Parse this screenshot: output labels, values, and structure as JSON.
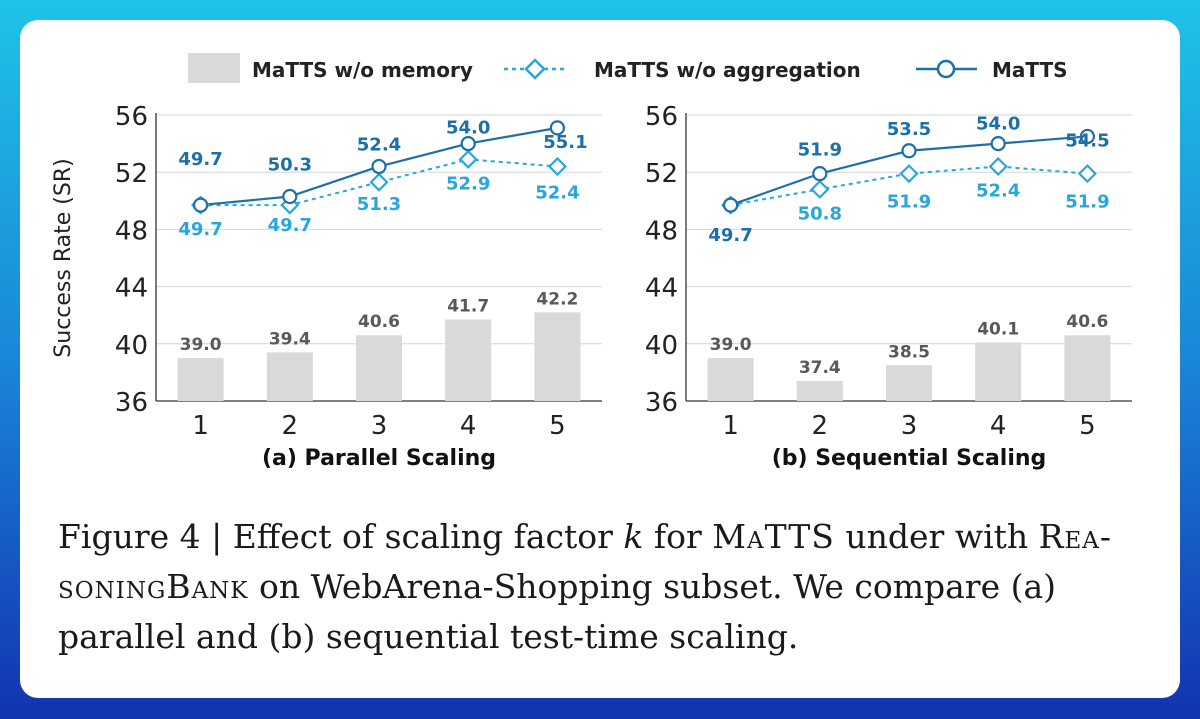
{
  "legend": {
    "bar_label": "MaTTS w/o memory",
    "dashed_label": "MaTTS w/o aggregation",
    "solid_label": "MaTTS"
  },
  "colors": {
    "bar": "#d9d9d9",
    "dashed": "#29a6dc",
    "solid": "#1c6fa8",
    "bar_label": "#595959",
    "axis": "#333333"
  },
  "chart_data": [
    {
      "type": "bar+line",
      "title": "(a) Parallel Scaling",
      "ylabel": "Success Rate (SR)",
      "xlabel": "",
      "x": [
        1,
        2,
        3,
        4,
        5
      ],
      "ylim": [
        36,
        56
      ],
      "yticks": [
        36,
        40,
        44,
        48,
        52,
        56
      ],
      "series": [
        {
          "name": "MaTTS w/o memory",
          "kind": "bar",
          "values": [
            39.0,
            39.4,
            40.6,
            41.7,
            42.2
          ],
          "labels": [
            "39.0",
            "39.4",
            "40.6",
            "41.7",
            "42.2"
          ]
        },
        {
          "name": "MaTTS w/o aggregation",
          "kind": "dashed-diamond",
          "values": [
            49.7,
            49.7,
            51.3,
            52.9,
            52.4
          ],
          "labels": [
            "49.7",
            "49.7",
            "51.3",
            "52.9",
            "52.4"
          ]
        },
        {
          "name": "MaTTS",
          "kind": "solid-circle",
          "values": [
            49.7,
            50.3,
            52.4,
            54.0,
            55.1
          ],
          "labels": [
            "49.7",
            "50.3",
            "52.4",
            "54.0",
            "55.1"
          ]
        }
      ]
    },
    {
      "type": "bar+line",
      "title": "(b) Sequential Scaling",
      "ylabel": "",
      "xlabel": "",
      "x": [
        1,
        2,
        3,
        4,
        5
      ],
      "ylim": [
        36,
        56
      ],
      "yticks": [
        36,
        40,
        44,
        48,
        52,
        56
      ],
      "series": [
        {
          "name": "MaTTS w/o memory",
          "kind": "bar",
          "values": [
            39.0,
            37.4,
            38.5,
            40.1,
            40.6
          ],
          "labels": [
            "39.0",
            "37.4",
            "38.5",
            "40.1",
            "40.6"
          ]
        },
        {
          "name": "MaTTS w/o aggregation",
          "kind": "dashed-diamond",
          "values": [
            49.7,
            50.8,
            51.9,
            52.4,
            51.9
          ],
          "labels": [
            "",
            "50.8",
            "51.9",
            "52.4",
            "51.9"
          ]
        },
        {
          "name": "MaTTS",
          "kind": "solid-circle",
          "values": [
            49.7,
            51.9,
            53.5,
            54.0,
            54.5
          ],
          "labels": [
            "49.7",
            "51.9",
            "53.5",
            "54.0",
            "54.5"
          ]
        }
      ]
    }
  ],
  "caption": {
    "p1": "Figure 4 | Effect of scaling factor ",
    "k": "k",
    "p2": " for ",
    "matts": "MaTTS",
    "p3": " under with ",
    "rb1": "Rea-",
    "rb2": "soningBank",
    "p4": " on WebArena-Shopping subset. We compare (a) parallel and (b) sequential test-time scaling."
  }
}
